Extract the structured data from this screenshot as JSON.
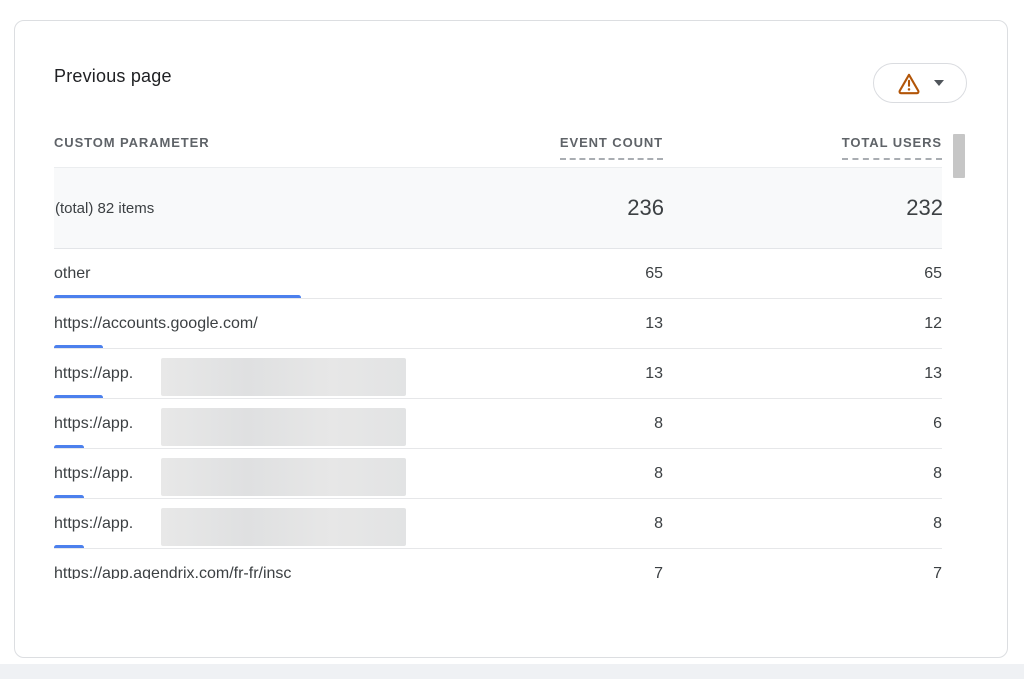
{
  "card": {
    "title": "Previous page",
    "warning_button": {
      "icon": "warning-triangle-icon",
      "caret_icon": "chevron-down-icon"
    }
  },
  "table": {
    "columns": [
      "CUSTOM PARAMETER",
      "EVENT COUNT",
      "TOTAL USERS"
    ],
    "total_row": {
      "label": "(total) 82 items",
      "event_count": "236",
      "total_users": "232"
    },
    "rows": [
      {
        "param": "other",
        "redacted": false,
        "event_count": "65",
        "total_users": "65",
        "value": 65
      },
      {
        "param": "https://accounts.google.com/",
        "redacted": false,
        "event_count": "13",
        "total_users": "12",
        "value": 13
      },
      {
        "param": "https://app.",
        "redacted": true,
        "event_count": "13",
        "total_users": "13",
        "value": 13
      },
      {
        "param": "https://app.",
        "redacted": true,
        "event_count": "8",
        "total_users": "6",
        "value": 8
      },
      {
        "param": "https://app.",
        "redacted": true,
        "event_count": "8",
        "total_users": "8",
        "value": 8
      },
      {
        "param": "https://app.",
        "redacted": true,
        "event_count": "8",
        "total_users": "8",
        "value": 8
      },
      {
        "param": "https://app.agendrix.com/fr-fr/insc",
        "redacted": false,
        "event_count": "7",
        "total_users": "7",
        "value": 7
      }
    ],
    "bar_max_value": 65
  },
  "colors": {
    "bar_blue": "#4c80ed",
    "warning_orange": "#b25508",
    "total_row_bg": "#f8f9fa"
  }
}
